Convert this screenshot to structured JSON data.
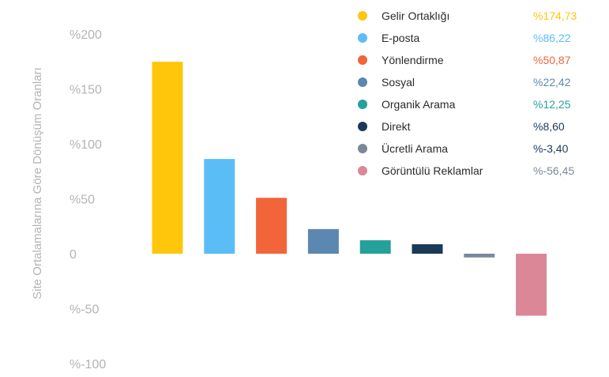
{
  "chart_data": {
    "type": "bar",
    "ylabel": "Site Ortalamalarına Göre Dönüşüm Oranları",
    "ylim": [
      -100,
      200
    ],
    "yticks": [
      "%-100",
      "%-50",
      "0",
      "%50",
      "%100",
      "%150",
      "%200"
    ],
    "ytick_values": [
      -100,
      -50,
      0,
      50,
      100,
      150,
      200
    ],
    "grid": false,
    "legend_position": "top-right",
    "categories": [
      "Gelir Ortaklığı",
      "E-posta",
      "Yönlendirme",
      "Sosyal",
      "Organik Arama",
      "Direkt",
      "Ücretli Arama",
      "Görüntülü Reklamlar"
    ],
    "values": [
      174.73,
      86.22,
      50.87,
      22.42,
      12.25,
      8.6,
      -3.4,
      -56.45
    ],
    "value_labels": [
      "%174,73",
      "%86,22",
      "%50,87",
      "%22,42",
      "%12,25",
      "%8,60",
      "%-3,40",
      "%-56,45"
    ],
    "colors": [
      "#FFC60B",
      "#5BBDF5",
      "#F2643A",
      "#5C87B0",
      "#26A09A",
      "#1C3A57",
      "#7A8899",
      "#DB8797"
    ],
    "value_label_colors": [
      "#FFC60B",
      "#5BBDF5",
      "#F2643A",
      "#5C87B0",
      "#26A09A",
      "#1C3A57",
      "#1C3A57",
      "#7A8899"
    ]
  }
}
